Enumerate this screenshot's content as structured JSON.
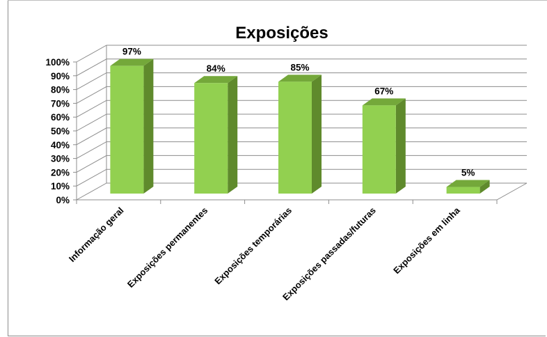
{
  "chart_data": {
    "type": "bar",
    "title": "Exposições",
    "categories": [
      "Informação geral",
      "Exposições permanentes",
      "Exposições temporárias",
      "Exposições passadas/futuras",
      "Exposições em linha"
    ],
    "values": [
      97,
      84,
      85,
      67,
      5
    ],
    "data_labels": [
      "97%",
      "84%",
      "85%",
      "67%",
      "5%"
    ],
    "yticks": [
      "0%",
      "10%",
      "20%",
      "30%",
      "40%",
      "50%",
      "60%",
      "70%",
      "80%",
      "90%",
      "100%"
    ],
    "ylim": [
      0,
      100
    ],
    "xlabel": "",
    "ylabel": "",
    "grid": true,
    "legend": "none",
    "style": "3d-column",
    "colors": {
      "bar_front": "#92d050",
      "bar_side": "#5f8a2c",
      "bar_top": "#74a83a",
      "grid": "#8c8c8c"
    }
  }
}
